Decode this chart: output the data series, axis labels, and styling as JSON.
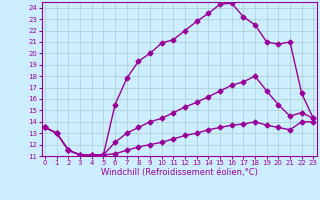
{
  "title": "",
  "xlabel": "Windchill (Refroidissement éolien,°C)",
  "background_color": "#cceeff",
  "line_color": "#990099",
  "grid_color": "#aacccc",
  "xlim": [
    -0.3,
    23.3
  ],
  "ylim": [
    11,
    24.5
  ],
  "yticks": [
    11,
    12,
    13,
    14,
    15,
    16,
    17,
    18,
    19,
    20,
    21,
    22,
    23,
    24
  ],
  "xticks": [
    0,
    1,
    2,
    3,
    4,
    5,
    6,
    7,
    8,
    9,
    10,
    11,
    12,
    13,
    14,
    15,
    16,
    17,
    18,
    19,
    20,
    21,
    22,
    23
  ],
  "curve1_x": [
    0,
    1,
    2,
    3,
    4,
    5,
    6,
    7,
    8,
    9,
    10,
    11,
    12,
    13,
    14,
    15,
    16,
    17,
    18,
    19,
    20,
    21,
    22,
    23
  ],
  "curve1_y": [
    13.5,
    13.0,
    11.5,
    11.1,
    11.1,
    11.1,
    15.5,
    17.8,
    19.3,
    20.0,
    20.9,
    21.2,
    22.0,
    22.8,
    23.5,
    24.3,
    24.4,
    23.2,
    22.5,
    21.0,
    20.8,
    21.0,
    16.5,
    14.3
  ],
  "curve2_x": [
    0,
    1,
    2,
    3,
    4,
    5,
    6,
    7,
    8,
    9,
    10,
    11,
    12,
    13,
    14,
    15,
    16,
    17,
    18,
    19,
    20,
    21,
    22,
    23
  ],
  "curve2_y": [
    13.5,
    13.0,
    11.5,
    11.1,
    11.1,
    11.1,
    12.2,
    13.0,
    13.5,
    14.0,
    14.3,
    14.8,
    15.3,
    15.7,
    16.2,
    16.7,
    17.2,
    17.5,
    18.0,
    16.7,
    15.5,
    14.5,
    14.8,
    14.3
  ],
  "curve3_x": [
    0,
    1,
    2,
    3,
    4,
    5,
    6,
    7,
    8,
    9,
    10,
    11,
    12,
    13,
    14,
    15,
    16,
    17,
    18,
    19,
    20,
    21,
    22,
    23
  ],
  "curve3_y": [
    13.5,
    13.0,
    11.5,
    11.1,
    11.1,
    11.1,
    11.2,
    11.5,
    11.8,
    12.0,
    12.2,
    12.5,
    12.8,
    13.0,
    13.3,
    13.5,
    13.7,
    13.8,
    14.0,
    13.7,
    13.5,
    13.3,
    14.0,
    14.0
  ],
  "marker": "D",
  "markersize": 2.5,
  "linewidth": 1.0,
  "tick_fontsize": 5.0,
  "xlabel_fontsize": 6.0
}
